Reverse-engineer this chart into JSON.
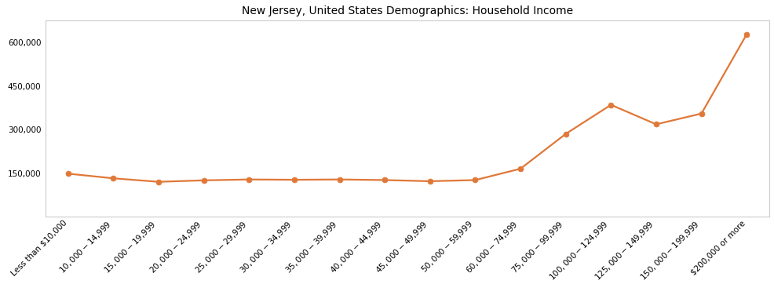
{
  "title": "New Jersey, United States Demographics: Household Income",
  "categories": [
    "Less than $10,000",
    "$10,000 - $14,999",
    "$15,000 - $19,999",
    "$20,000 - $24,999",
    "$25,000 - $29,999",
    "$30,000 - $34,999",
    "$35,000 - $39,999",
    "$40,000 - $44,999",
    "$45,000 - $49,999",
    "$50,000 - $59,999",
    "$60,000 - $74,999",
    "$75,000 - $99,999",
    "$100,000 - $124,999",
    "$125,000 - $149,999",
    "$150,000 - $199,999",
    "$200,000 or more"
  ],
  "values": [
    148000,
    132000,
    120000,
    125000,
    128000,
    127000,
    128000,
    126000,
    122000,
    126000,
    165000,
    285000,
    385000,
    318000,
    355000,
    628000
  ],
  "line_color": "#E07838",
  "marker_color": "#E07838",
  "background_color": "#ffffff",
  "ylim": [
    0,
    675000
  ],
  "yticks": [
    0,
    150000,
    300000,
    450000,
    600000
  ],
  "ytick_labels": [
    "",
    "150,000",
    "300,000",
    "450,000",
    "600,000"
  ],
  "title_fontsize": 10,
  "tick_fontsize": 7.5,
  "line_width": 1.6,
  "marker_size": 5
}
